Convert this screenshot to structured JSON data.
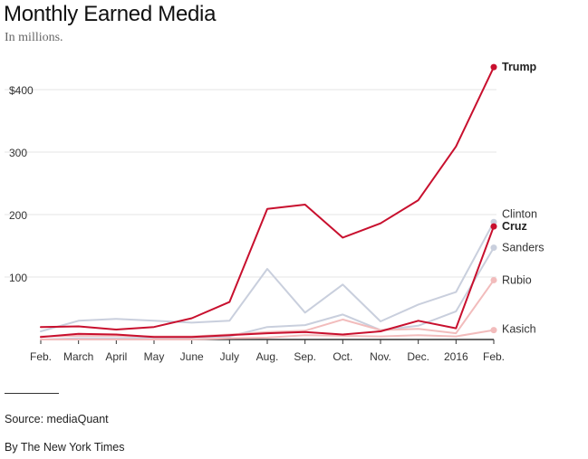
{
  "header": {
    "title": "Monthly Earned Media",
    "subtitle": "In millions."
  },
  "footer": {
    "source": "Source: mediaQuant",
    "credit": "By The New York Times"
  },
  "chart_data": {
    "type": "line",
    "categories": [
      "Feb.",
      "March",
      "April",
      "May",
      "June",
      "July",
      "Aug.",
      "Sep.",
      "Oct.",
      "Nov.",
      "Dec.",
      "2016",
      "Feb."
    ],
    "y_ticks": [
      100,
      200,
      300,
      400
    ],
    "y_tick_labels": [
      "100",
      "200",
      "300",
      "$400"
    ],
    "ylim": [
      0,
      470
    ],
    "grid": true,
    "legend": "direct labels at line ends",
    "series": [
      {
        "name": "Clinton",
        "color": "#c9cfdd",
        "width": 2,
        "bold": false,
        "values": [
          13,
          30,
          33,
          30,
          27,
          30,
          113,
          43,
          88,
          29,
          56,
          76,
          188
        ]
      },
      {
        "name": "Sanders",
        "color": "#c9cfdd",
        "width": 2,
        "bold": false,
        "values": [
          0,
          2,
          2,
          3,
          3,
          5,
          20,
          23,
          40,
          15,
          22,
          45,
          147
        ]
      },
      {
        "name": "Kasich",
        "color": "#f2bcbc",
        "width": 2,
        "bold": false,
        "values": [
          0,
          0,
          0,
          0,
          0,
          2,
          3,
          7,
          6,
          5,
          7,
          5,
          15
        ]
      },
      {
        "name": "Rubio",
        "color": "#f2bcbc",
        "width": 2,
        "bold": false,
        "values": [
          5,
          6,
          6,
          5,
          5,
          8,
          12,
          14,
          32,
          15,
          17,
          10,
          95
        ]
      },
      {
        "name": "Cruz",
        "color": "#c8102e",
        "width": 2,
        "bold": true,
        "values": [
          4,
          9,
          8,
          4,
          4,
          7,
          10,
          12,
          8,
          13,
          30,
          18,
          181
        ]
      },
      {
        "name": "Trump",
        "color": "#c8102e",
        "width": 2,
        "bold": true,
        "values": [
          20,
          21,
          16,
          20,
          34,
          60,
          209,
          216,
          163,
          186,
          223,
          309,
          436
        ]
      }
    ]
  }
}
